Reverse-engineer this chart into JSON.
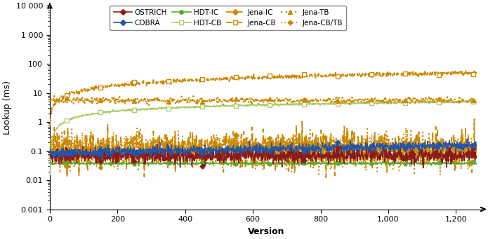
{
  "title": "",
  "xlabel": "Version",
  "ylabel": "Lookup (ms)",
  "xlim": [
    0,
    1280
  ],
  "ylim": [
    0.001,
    10000
  ],
  "xticks": [
    0,
    200,
    400,
    600,
    800,
    1000,
    1200
  ],
  "xtick_labels": [
    "0",
    "200",
    "400",
    "600",
    "800",
    "1,000",
    "1,200"
  ],
  "ytick_labels": {
    "0.001": "0.001",
    "0.01": "0.01",
    "0.1": "0.1",
    "1": "1",
    "10": "10",
    "100": "100",
    "1000": "1 000",
    "10000": "10 000"
  },
  "colors": {
    "OSTRICH": "#8B1A1A",
    "COBRA": "#2255AA",
    "HDT-IC": "#5AAA28",
    "HDT-CB": "#AACC66",
    "Jena": "#CC8800"
  },
  "background_color": "#ffffff"
}
